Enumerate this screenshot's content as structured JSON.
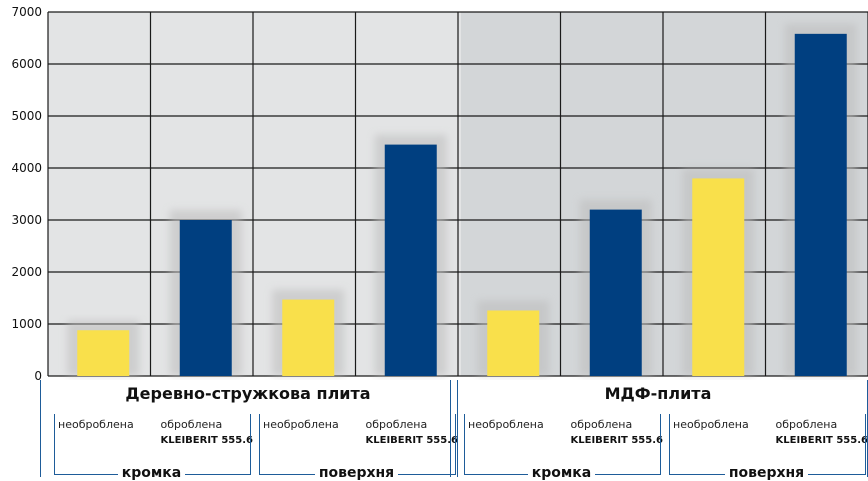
{
  "chart_data": {
    "type": "bar",
    "ylim": [
      0,
      7000
    ],
    "y_ticks": [
      "0",
      "1000",
      "2000",
      "3000",
      "4000",
      "5000",
      "6000",
      "7000"
    ],
    "y_tick_values": [
      0,
      1000,
      2000,
      3000,
      4000,
      5000,
      6000,
      7000
    ],
    "grid": true,
    "series_colors": {
      "untreated": "#f9e04b",
      "treated": "#003f80"
    },
    "groups": [
      {
        "title": "Деревно-стружкова плита",
        "subgroups": [
          {
            "label": "кромка",
            "bars": [
              {
                "state": "untreated",
                "label": "необроблена",
                "value": 880
              },
              {
                "state": "treated",
                "label": "оброблена",
                "label2": "KLEIBERIT 555.6",
                "value": 3000
              }
            ]
          },
          {
            "label": "поверхня",
            "bars": [
              {
                "state": "untreated",
                "label": "необроблена",
                "value": 1470
              },
              {
                "state": "treated",
                "label": "оброблена",
                "label2": "KLEIBERIT 555.6",
                "value": 4450
              }
            ]
          }
        ]
      },
      {
        "title": "МДФ-плита",
        "subgroups": [
          {
            "label": "кромка",
            "bars": [
              {
                "state": "untreated",
                "label": "необроблена",
                "value": 1260
              },
              {
                "state": "treated",
                "label": "оброблена",
                "label2": "KLEIBERIT 555.6",
                "value": 3200
              }
            ]
          },
          {
            "label": "поверхня",
            "bars": [
              {
                "state": "untreated",
                "label": "необроблена",
                "value": 3800
              },
              {
                "state": "treated",
                "label": "оброблена",
                "label2": "KLEIBERIT 555.6",
                "value": 6580
              }
            ]
          }
        ]
      }
    ]
  }
}
